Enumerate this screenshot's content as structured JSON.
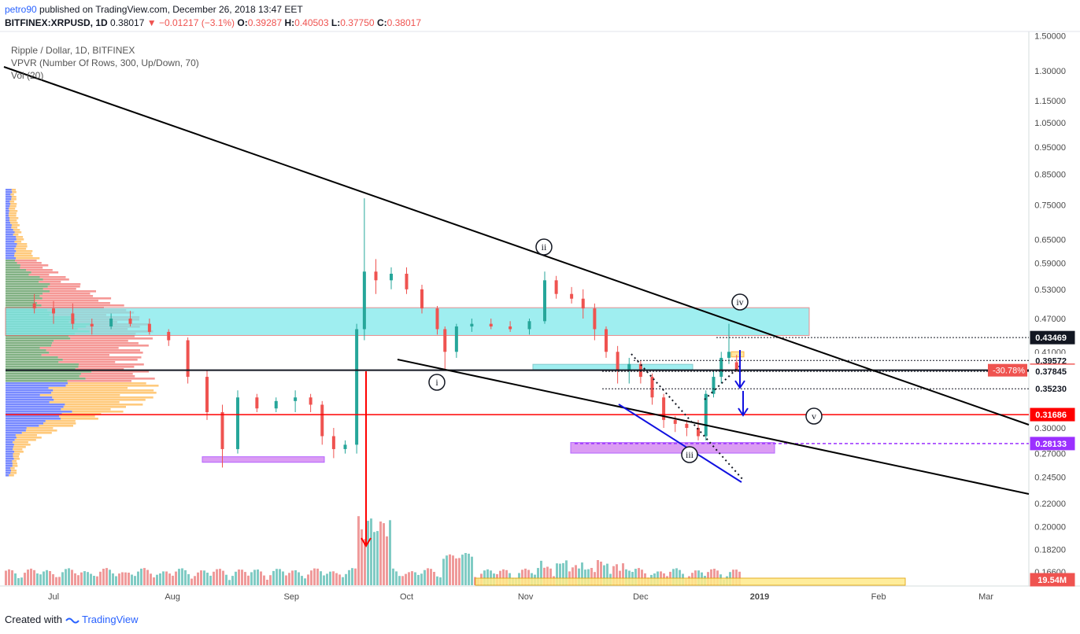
{
  "header": {
    "user": "petro90",
    "published": " published on TradingView.com, December 26, 2018 13:47 EET"
  },
  "symbol": {
    "ticker": "BITFINEX:XRPUSD, 1D",
    "price": "0.38017",
    "change": "▼ −0.01217 (−3.1%)",
    "o_label": "O:",
    "o": "0.39287",
    "h_label": "H:",
    "h": "0.40503",
    "l_label": "L:",
    "l": "0.37750",
    "c_label": "C:",
    "c": "0.38017"
  },
  "legends": [
    "Ripple / Dollar, 1D, BITFINEX",
    "VPVR (Number Of Rows, 300, Up/Down, 70)",
    "Vol (20)"
  ],
  "footer": {
    "created": "Created with",
    "brand": "TradingView"
  },
  "colors": {
    "up": "#26a69a",
    "down": "#ef5350",
    "zone_cyan": "#7fe9ec",
    "zone_purple": "#d07cf0",
    "support_red": "#ff0000",
    "dashed_purple": "#9b30ff"
  },
  "chart_data": {
    "type": "candlestick",
    "log_scale": true,
    "x_ticks": [
      "Jul",
      "Aug",
      "Sep",
      "Oct",
      "Nov",
      "Dec",
      "2019",
      "Feb",
      "Mar"
    ],
    "y_ticks": [
      "1.50000",
      "1.30000",
      "1.15000",
      "1.05000",
      "0.95000",
      "0.85000",
      "0.75000",
      "0.65000",
      "0.59000",
      "0.53000",
      "0.47000",
      "0.41000",
      "0.30000",
      "0.27000",
      "0.24500",
      "0.22000",
      "0.20000",
      "0.18200",
      "0.16600"
    ],
    "price_labels": [
      {
        "text": "0.43469",
        "color": "#ffffff",
        "bg": "#131722",
        "fg": "#ffffff"
      },
      {
        "text": "0.39572",
        "color": "#ffffff",
        "bg": "#ffffff",
        "fg": "#131722"
      },
      {
        "text": "-30.78%",
        "bg": "#ef5350",
        "fg": "#ffffff"
      },
      {
        "text": "0.38017",
        "bg": "#ef5350",
        "fg": "#ffffff"
      },
      {
        "text": "0.37845",
        "bg": "#ffffff",
        "fg": "#131722"
      },
      {
        "text": "0.35230",
        "bg": "#ffffff",
        "fg": "#131722"
      },
      {
        "text": "0.31686",
        "bg": "#ff0000",
        "fg": "#ffffff"
      },
      {
        "text": "0.28133",
        "bg": "#9b30ff",
        "fg": "#ffffff"
      },
      {
        "text": "19.54M",
        "bg": "#ef5350",
        "fg": "#ffffff"
      }
    ],
    "wave_labels": [
      "i",
      "ii",
      "iii",
      "iv",
      "v"
    ],
    "levels": {
      "current": 0.38017,
      "support_red": 0.31686,
      "dashed_purple": 0.28133,
      "dotted": [
        0.43469,
        0.39572,
        0.37845,
        0.3523
      ]
    },
    "zones": [
      {
        "name": "cyan-resistance",
        "low": 0.4385,
        "high": 0.4915
      },
      {
        "name": "cyan-small",
        "low": 0.381,
        "high": 0.3895
      },
      {
        "name": "purple-jul",
        "low": 0.2605,
        "high": 0.2665
      },
      {
        "name": "purple-dec",
        "low": 0.2705,
        "high": 0.2825
      },
      {
        "name": "orange-small",
        "low": 0.4015,
        "high": 0.4102
      }
    ],
    "candles": [
      {
        "d": "2018-06-26",
        "o": 0.5,
        "h": 0.52,
        "l": 0.48,
        "c": 0.49
      },
      {
        "d": "2018-07-01",
        "o": 0.49,
        "h": 0.505,
        "l": 0.46,
        "c": 0.48
      },
      {
        "d": "2018-07-06",
        "o": 0.48,
        "h": 0.5,
        "l": 0.45,
        "c": 0.46
      },
      {
        "d": "2018-07-11",
        "o": 0.46,
        "h": 0.47,
        "l": 0.44,
        "c": 0.455
      },
      {
        "d": "2018-07-16",
        "o": 0.455,
        "h": 0.48,
        "l": 0.45,
        "c": 0.47
      },
      {
        "d": "2018-07-21",
        "o": 0.47,
        "h": 0.485,
        "l": 0.455,
        "c": 0.46
      },
      {
        "d": "2018-07-26",
        "o": 0.46,
        "h": 0.47,
        "l": 0.44,
        "c": 0.445
      },
      {
        "d": "2018-07-31",
        "o": 0.445,
        "h": 0.45,
        "l": 0.42,
        "c": 0.43
      },
      {
        "d": "2018-08-05",
        "o": 0.43,
        "h": 0.435,
        "l": 0.36,
        "c": 0.37
      },
      {
        "d": "2018-08-10",
        "o": 0.37,
        "h": 0.38,
        "l": 0.31,
        "c": 0.32
      },
      {
        "d": "2018-08-14",
        "o": 0.32,
        "h": 0.33,
        "l": 0.255,
        "c": 0.275
      },
      {
        "d": "2018-08-18",
        "o": 0.275,
        "h": 0.35,
        "l": 0.27,
        "c": 0.34
      },
      {
        "d": "2018-08-23",
        "o": 0.34,
        "h": 0.345,
        "l": 0.32,
        "c": 0.325
      },
      {
        "d": "2018-08-28",
        "o": 0.325,
        "h": 0.34,
        "l": 0.32,
        "c": 0.335
      },
      {
        "d": "2018-09-02",
        "o": 0.335,
        "h": 0.35,
        "l": 0.32,
        "c": 0.34
      },
      {
        "d": "2018-09-06",
        "o": 0.34,
        "h": 0.345,
        "l": 0.32,
        "c": 0.33
      },
      {
        "d": "2018-09-09",
        "o": 0.33,
        "h": 0.335,
        "l": 0.28,
        "c": 0.29
      },
      {
        "d": "2018-09-12",
        "o": 0.29,
        "h": 0.3,
        "l": 0.265,
        "c": 0.275
      },
      {
        "d": "2018-09-15",
        "o": 0.275,
        "h": 0.285,
        "l": 0.27,
        "c": 0.28
      },
      {
        "d": "2018-09-18",
        "o": 0.28,
        "h": 0.46,
        "l": 0.27,
        "c": 0.45
      },
      {
        "d": "2018-09-20",
        "o": 0.45,
        "h": 0.77,
        "l": 0.43,
        "c": 0.57
      },
      {
        "d": "2018-09-23",
        "o": 0.57,
        "h": 0.6,
        "l": 0.52,
        "c": 0.55
      },
      {
        "d": "2018-09-27",
        "o": 0.55,
        "h": 0.58,
        "l": 0.53,
        "c": 0.565
      },
      {
        "d": "2018-10-01",
        "o": 0.565,
        "h": 0.58,
        "l": 0.52,
        "c": 0.53
      },
      {
        "d": "2018-10-05",
        "o": 0.53,
        "h": 0.54,
        "l": 0.48,
        "c": 0.49
      },
      {
        "d": "2018-10-09",
        "o": 0.49,
        "h": 0.495,
        "l": 0.44,
        "c": 0.45
      },
      {
        "d": "2018-10-11",
        "o": 0.45,
        "h": 0.455,
        "l": 0.38,
        "c": 0.41
      },
      {
        "d": "2018-10-14",
        "o": 0.41,
        "h": 0.46,
        "l": 0.4,
        "c": 0.455
      },
      {
        "d": "2018-10-18",
        "o": 0.455,
        "h": 0.47,
        "l": 0.445,
        "c": 0.46
      },
      {
        "d": "2018-10-23",
        "o": 0.46,
        "h": 0.47,
        "l": 0.45,
        "c": 0.455
      },
      {
        "d": "2018-10-28",
        "o": 0.455,
        "h": 0.465,
        "l": 0.445,
        "c": 0.45
      },
      {
        "d": "2018-11-02",
        "o": 0.45,
        "h": 0.47,
        "l": 0.44,
        "c": 0.465
      },
      {
        "d": "2018-11-06",
        "o": 0.465,
        "h": 0.57,
        "l": 0.46,
        "c": 0.55
      },
      {
        "d": "2018-11-09",
        "o": 0.55,
        "h": 0.56,
        "l": 0.51,
        "c": 0.52
      },
      {
        "d": "2018-11-13",
        "o": 0.52,
        "h": 0.535,
        "l": 0.5,
        "c": 0.51
      },
      {
        "d": "2018-11-16",
        "o": 0.51,
        "h": 0.53,
        "l": 0.47,
        "c": 0.49
      },
      {
        "d": "2018-11-19",
        "o": 0.49,
        "h": 0.5,
        "l": 0.43,
        "c": 0.45
      },
      {
        "d": "2018-11-22",
        "o": 0.45,
        "h": 0.455,
        "l": 0.4,
        "c": 0.41
      },
      {
        "d": "2018-11-25",
        "o": 0.41,
        "h": 0.42,
        "l": 0.36,
        "c": 0.38
      },
      {
        "d": "2018-11-28",
        "o": 0.38,
        "h": 0.4,
        "l": 0.36,
        "c": 0.39
      },
      {
        "d": "2018-12-01",
        "o": 0.39,
        "h": 0.395,
        "l": 0.36,
        "c": 0.37
      },
      {
        "d": "2018-12-04",
        "o": 0.37,
        "h": 0.375,
        "l": 0.33,
        "c": 0.34
      },
      {
        "d": "2018-12-07",
        "o": 0.34,
        "h": 0.345,
        "l": 0.3,
        "c": 0.31
      },
      {
        "d": "2018-12-10",
        "o": 0.31,
        "h": 0.315,
        "l": 0.295,
        "c": 0.305
      },
      {
        "d": "2018-12-13",
        "o": 0.305,
        "h": 0.31,
        "l": 0.29,
        "c": 0.3
      },
      {
        "d": "2018-12-16",
        "o": 0.3,
        "h": 0.31,
        "l": 0.285,
        "c": 0.29
      },
      {
        "d": "2018-12-18",
        "o": 0.29,
        "h": 0.35,
        "l": 0.285,
        "c": 0.345
      },
      {
        "d": "2018-12-20",
        "o": 0.345,
        "h": 0.38,
        "l": 0.34,
        "c": 0.37
      },
      {
        "d": "2018-12-22",
        "o": 0.37,
        "h": 0.41,
        "l": 0.36,
        "c": 0.4
      },
      {
        "d": "2018-12-24",
        "o": 0.4,
        "h": 0.46,
        "l": 0.39,
        "c": 0.41
      },
      {
        "d": "2018-12-26",
        "o": 0.39287,
        "h": 0.40503,
        "l": 0.3775,
        "c": 0.38017
      }
    ]
  }
}
